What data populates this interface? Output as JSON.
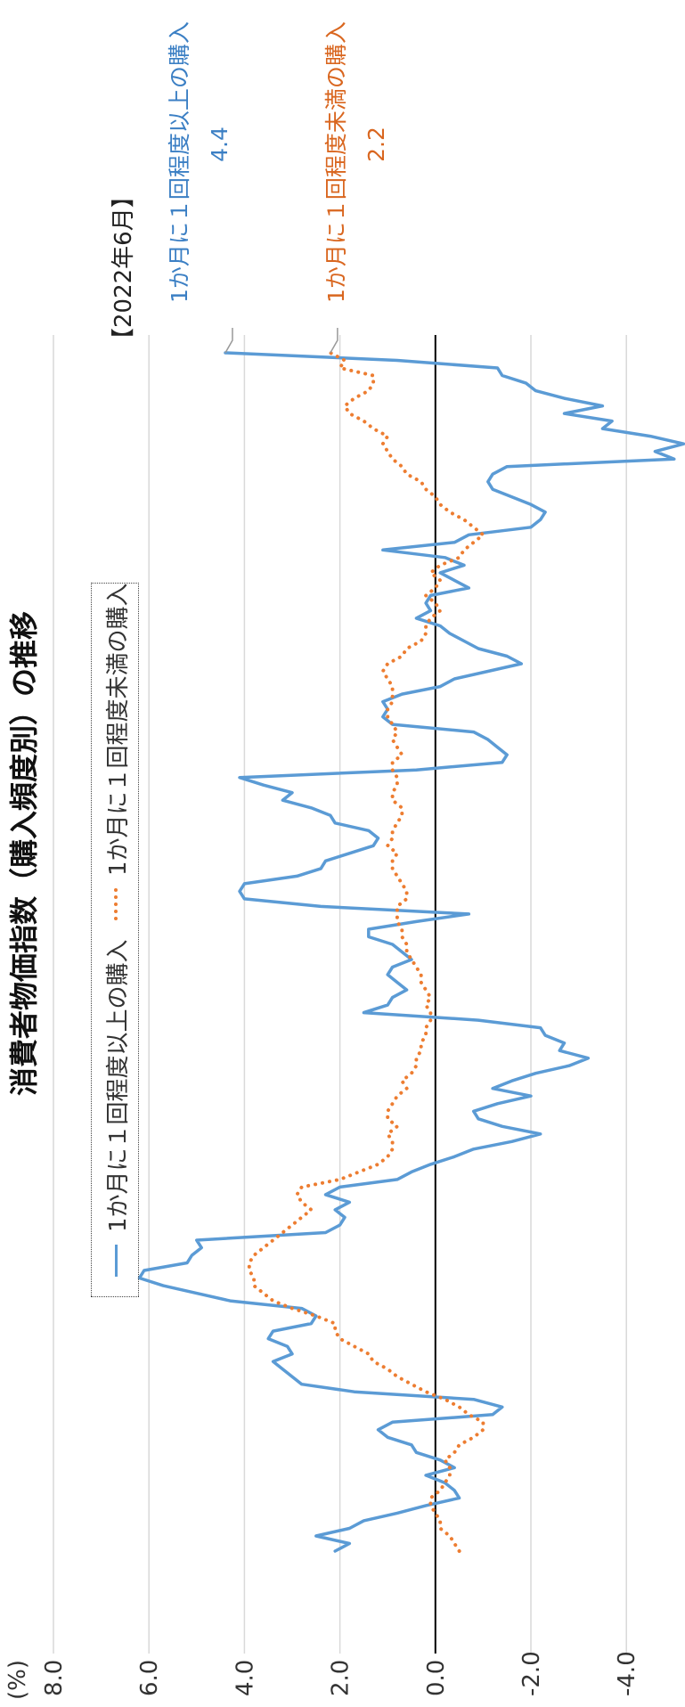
{
  "title": "消費者物価指数（購入頻度別）の推移",
  "unit": "(%)",
  "legend": {
    "series1": "1か月に１回程度以上の購入",
    "series2": "1か月に１回程度未満の購入"
  },
  "annotation": {
    "header": "【2022年6月】",
    "series1_label": "1か月に１回程度以上の購入",
    "series1_value": "4.4",
    "series2_label": "1か月に１回程度未満の購入",
    "series2_value": "2.2"
  },
  "colors": {
    "series1": "#5b9bd5",
    "series2": "#ed7d31",
    "grid": "#d9d9d9",
    "zero": "#000000"
  },
  "chart_data": {
    "type": "line",
    "title": "消費者物価指数（購入頻度別）の推移",
    "ylabel": "(%)",
    "ylim": [
      -5.6,
      8.0
    ],
    "yticks": [
      "8.0",
      "6.0",
      "4.0",
      "2.0",
      "0.0",
      "-2.0",
      "-4.0"
    ],
    "ytick_values": [
      8,
      6,
      4,
      2,
      0,
      -2,
      -4
    ],
    "grid": true,
    "legend": "top",
    "series": [
      {
        "name": "1か月に１回程度以上の購入",
        "style": "solid",
        "values": [
          2.1,
          1.8,
          2.5,
          1.8,
          1.5,
          0.8,
          0.2,
          -0.5,
          -0.4,
          -0.2,
          0.2,
          -0.4,
          -0.1,
          0.4,
          0.5,
          1.0,
          1.2,
          0.9,
          -1.2,
          -1.4,
          -0.8,
          1.7,
          2.8,
          3.0,
          3.2,
          3.4,
          3.0,
          3.1,
          3.5,
          3.4,
          2.6,
          2.5,
          2.8,
          4.3,
          5.0,
          5.7,
          6.2,
          6.1,
          5.2,
          5.1,
          4.9,
          5.0,
          2.3,
          2.0,
          1.9,
          2.1,
          1.8,
          2.3,
          2.0,
          0.8,
          0.5,
          0.1,
          -0.4,
          -0.8,
          -1.6,
          -2.2,
          -1.4,
          -0.9,
          -0.8,
          -1.3,
          -2.0,
          -1.2,
          -1.6,
          -2.1,
          -2.8,
          -3.2,
          -2.6,
          -2.7,
          -2.3,
          -2.2,
          -0.9,
          1.5,
          1.0,
          0.9,
          0.6,
          0.8,
          1.0,
          0.9,
          0.5,
          0.7,
          0.9,
          1.4,
          1.4,
          0.4,
          -0.7,
          2.4,
          4.0,
          4.1,
          4.0,
          2.9,
          2.4,
          2.3,
          1.8,
          1.3,
          1.2,
          1.4,
          2.1,
          2.2,
          2.6,
          3.2,
          3.0,
          3.6,
          4.1,
          0.4,
          -1.4,
          -1.5,
          -1.3,
          -1.1,
          -0.8,
          0.9,
          1.1,
          1.0,
          1.1,
          0.7,
          -0.1,
          -0.4,
          -1.1,
          -1.8,
          -1.5,
          -0.9,
          -0.6,
          -0.3,
          -0.1,
          0.4,
          0.1,
          0.2,
          0.1,
          -0.7,
          -0.4,
          -0.1,
          -0.6,
          -0.2,
          1.1,
          -0.4,
          -0.7,
          -2.0,
          -2.2,
          -2.3,
          -2.0,
          -1.6,
          -1.2,
          -1.1,
          -1.2,
          -1.5,
          -5.0,
          -4.6,
          -5.2,
          -4.5,
          -3.5,
          -3.7,
          -2.7,
          -3.5,
          -2.7,
          -2.1,
          -1.9,
          -1.4,
          -1.3,
          0.8,
          4.4
        ]
      },
      {
        "name": "1か月に１回程度未満の購入",
        "style": "dotted",
        "values": [
          -0.5,
          -0.4,
          -0.3,
          -0.1,
          -0.1,
          0.0,
          0.1,
          0.1,
          -0.1,
          -0.2,
          -0.3,
          -0.3,
          -0.2,
          -0.4,
          -0.5,
          -0.8,
          -1.0,
          -1.0,
          -0.7,
          -0.5,
          -0.2,
          0.2,
          0.5,
          0.8,
          1.0,
          1.3,
          1.4,
          1.7,
          2.0,
          2.1,
          2.1,
          2.5,
          3.0,
          3.4,
          3.6,
          3.8,
          3.8,
          3.9,
          3.9,
          3.8,
          3.6,
          3.4,
          3.2,
          3.0,
          2.8,
          2.6,
          2.8,
          2.9,
          2.8,
          2.0,
          1.6,
          1.2,
          1.0,
          0.9,
          0.9,
          1.0,
          0.8,
          1.0,
          1.0,
          0.9,
          0.8,
          0.6,
          0.7,
          0.5,
          0.4,
          0.4,
          0.3,
          0.3,
          0.2,
          0.2,
          0.1,
          0.1,
          0.2,
          0.1,
          0.2,
          0.3,
          0.3,
          0.4,
          0.5,
          0.6,
          0.6,
          0.7,
          0.7,
          0.8,
          0.8,
          0.8,
          0.6,
          0.6,
          0.7,
          0.8,
          0.9,
          0.9,
          0.8,
          1.0,
          0.9,
          0.9,
          0.8,
          0.7,
          0.7,
          0.9,
          0.9,
          0.8,
          0.8,
          0.9,
          0.9,
          0.7,
          0.8,
          0.9,
          0.8,
          0.9,
          1.0,
          1.0,
          0.9,
          0.9,
          0.9,
          1.0,
          1.1,
          1.0,
          0.7,
          0.6,
          0.3,
          0.2,
          0.2,
          0.1,
          -0.1,
          0.0,
          0.2,
          0.0,
          -0.1,
          0.1,
          -0.1,
          -0.5,
          -0.6,
          -0.8,
          -1.0,
          -0.8,
          -0.6,
          -0.3,
          -0.1,
          0.0,
          0.2,
          0.3,
          0.6,
          0.7,
          0.9,
          1.0,
          1.1,
          1.0,
          1.3,
          1.5,
          1.8,
          1.9,
          1.7,
          1.4,
          1.3,
          1.3,
          2.0,
          1.9,
          2.2
        ]
      }
    ]
  }
}
